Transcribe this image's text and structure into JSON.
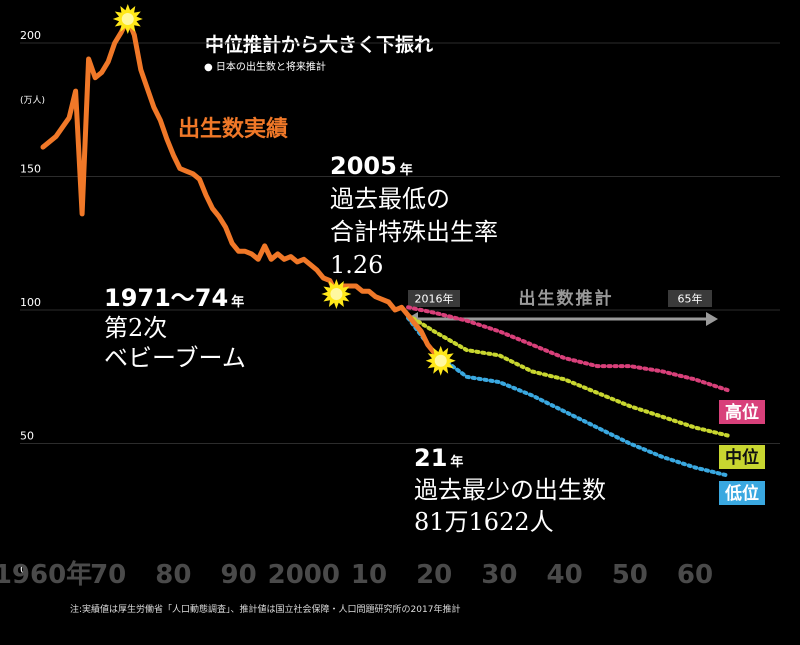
{
  "chart_data": {
    "type": "line",
    "title": "中位推計から大きく下振れ",
    "subtitle": "● 日本の出生数と将来推計",
    "y_unit": "(万人)",
    "y_ticks": [
      "200",
      "150",
      "100",
      "50",
      "0"
    ],
    "ylim": [
      0,
      220
    ],
    "xlim": [
      1960,
      2070
    ],
    "x_ticks": [
      {
        "x": 1960,
        "label": "1960年"
      },
      {
        "x": 1970,
        "label": "70"
      },
      {
        "x": 1980,
        "label": "80"
      },
      {
        "x": 1990,
        "label": "90"
      },
      {
        "x": 2000,
        "label": "2000"
      },
      {
        "x": 2010,
        "label": "10"
      },
      {
        "x": 2020,
        "label": "20"
      },
      {
        "x": 2030,
        "label": "30"
      },
      {
        "x": 2040,
        "label": "40"
      },
      {
        "x": 2050,
        "label": "50"
      },
      {
        "x": 2060,
        "label": "60"
      }
    ],
    "grid": true,
    "actual": {
      "name": "出生数実績",
      "color": "#f07828",
      "points": [
        [
          1960,
          161
        ],
        [
          1962,
          165
        ],
        [
          1964,
          172
        ],
        [
          1965,
          182
        ],
        [
          1966,
          136
        ],
        [
          1967,
          194
        ],
        [
          1968,
          187
        ],
        [
          1969,
          189
        ],
        [
          1970,
          193
        ],
        [
          1971,
          200
        ],
        [
          1972,
          204
        ],
        [
          1973,
          209
        ],
        [
          1974,
          203
        ],
        [
          1975,
          190
        ],
        [
          1976,
          183
        ],
        [
          1977,
          176
        ],
        [
          1978,
          171
        ],
        [
          1979,
          164
        ],
        [
          1980,
          158
        ],
        [
          1981,
          153
        ],
        [
          1982,
          152
        ],
        [
          1983,
          151
        ],
        [
          1984,
          149
        ],
        [
          1985,
          143
        ],
        [
          1986,
          138
        ],
        [
          1987,
          135
        ],
        [
          1988,
          131
        ],
        [
          1989,
          125
        ],
        [
          1990,
          122
        ],
        [
          1991,
          122
        ],
        [
          1992,
          121
        ],
        [
          1993,
          119
        ],
        [
          1994,
          124
        ],
        [
          1995,
          119
        ],
        [
          1996,
          121
        ],
        [
          1997,
          119
        ],
        [
          1998,
          120
        ],
        [
          1999,
          118
        ],
        [
          2000,
          119
        ],
        [
          2001,
          117
        ],
        [
          2002,
          115
        ],
        [
          2003,
          112
        ],
        [
          2004,
          111
        ],
        [
          2005,
          106
        ],
        [
          2006,
          109
        ],
        [
          2007,
          109
        ],
        [
          2008,
          109
        ],
        [
          2009,
          107
        ],
        [
          2010,
          107
        ],
        [
          2011,
          105
        ],
        [
          2012,
          104
        ],
        [
          2013,
          103
        ],
        [
          2014,
          100
        ],
        [
          2015,
          101
        ],
        [
          2016,
          98
        ],
        [
          2017,
          95
        ],
        [
          2018,
          92
        ],
        [
          2019,
          87
        ],
        [
          2020,
          84
        ],
        [
          2021,
          81
        ]
      ]
    },
    "projections": [
      {
        "name": "高位",
        "color": "#d8407a",
        "points": [
          [
            2016,
            101
          ],
          [
            2020,
            99
          ],
          [
            2025,
            96
          ],
          [
            2030,
            92
          ],
          [
            2035,
            87
          ],
          [
            2040,
            82
          ],
          [
            2045,
            79
          ],
          [
            2050,
            79
          ],
          [
            2055,
            77
          ],
          [
            2060,
            74
          ],
          [
            2065,
            70
          ]
        ]
      },
      {
        "name": "中位",
        "color": "#c8d630",
        "points": [
          [
            2016,
            98
          ],
          [
            2020,
            92
          ],
          [
            2025,
            85
          ],
          [
            2030,
            83
          ],
          [
            2035,
            77
          ],
          [
            2040,
            74
          ],
          [
            2045,
            69
          ],
          [
            2050,
            64
          ],
          [
            2055,
            60
          ],
          [
            2060,
            56
          ],
          [
            2065,
            53
          ]
        ]
      },
      {
        "name": "低位",
        "color": "#3aa8e0",
        "points": [
          [
            2016,
            97
          ],
          [
            2020,
            84
          ],
          [
            2025,
            75
          ],
          [
            2030,
            73
          ],
          [
            2035,
            68
          ],
          [
            2040,
            62
          ],
          [
            2045,
            56
          ],
          [
            2050,
            50
          ],
          [
            2055,
            45
          ],
          [
            2060,
            41
          ],
          [
            2065,
            38
          ]
        ]
      }
    ],
    "highlights": [
      {
        "x": 1973,
        "y": 209
      },
      {
        "x": 2005,
        "y": 106
      },
      {
        "x": 2021,
        "y": 81
      }
    ],
    "projection_range": {
      "label": "出生数推計",
      "start_label": "2016年",
      "end_label": "65年"
    },
    "annotations": {
      "actual_label": "出生数実績",
      "boom": {
        "year_text": "1971〜74",
        "suffix": "年",
        "lines": [
          "第2次",
          "ベビーブーム"
        ]
      },
      "y2005": {
        "year_text": "2005",
        "suffix": "年",
        "lines": [
          "過去最低の",
          "合計特殊出生率",
          "1.26"
        ]
      },
      "y2021": {
        "year_text": "21",
        "suffix": "年",
        "lines": [
          "過去最少の出生数",
          "81万1622人"
        ]
      }
    },
    "note": "注:実績値は厚生労働省「人口動態調査」、推計値は国立社会保障・人口問題研究所の2017年推計"
  }
}
